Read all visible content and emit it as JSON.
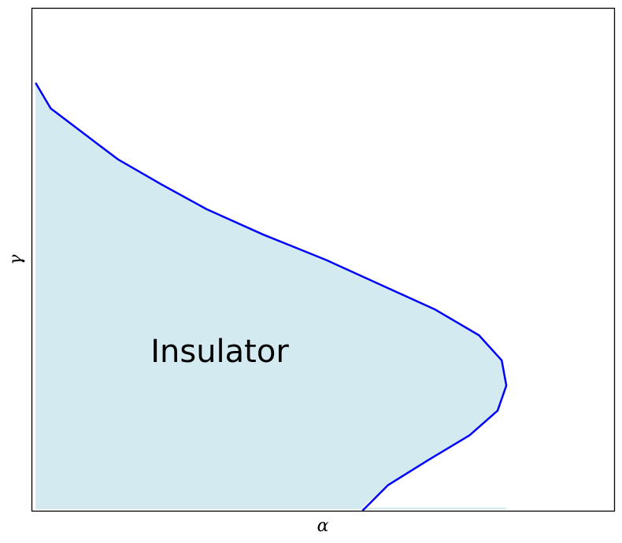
{
  "chart_data": {
    "type": "area",
    "xlabel": "α",
    "ylabel": "γ",
    "xticks": [],
    "yticks": [],
    "grid": false,
    "xlim": [
      0,
      1
    ],
    "ylim": [
      0,
      1
    ],
    "colors": {
      "boundary_line": "#0000ff",
      "fill": "#d4eaf1",
      "frame": "#000000"
    },
    "series": [
      {
        "x": [
          0.007,
          0.033,
          0.09,
          0.148,
          0.223,
          0.3,
          0.398,
          0.505,
          0.6,
          0.693,
          0.768,
          0.807,
          0.815,
          0.8,
          0.752,
          0.68,
          0.612,
          0.568
        ],
        "y": [
          0.851,
          0.8,
          0.75,
          0.699,
          0.649,
          0.6,
          0.549,
          0.499,
          0.449,
          0.4,
          0.349,
          0.299,
          0.249,
          0.199,
          0.15,
          0.1,
          0.051,
          0.0
        ]
      }
    ],
    "regions": [
      {
        "label": "Insulator"
      }
    ]
  }
}
